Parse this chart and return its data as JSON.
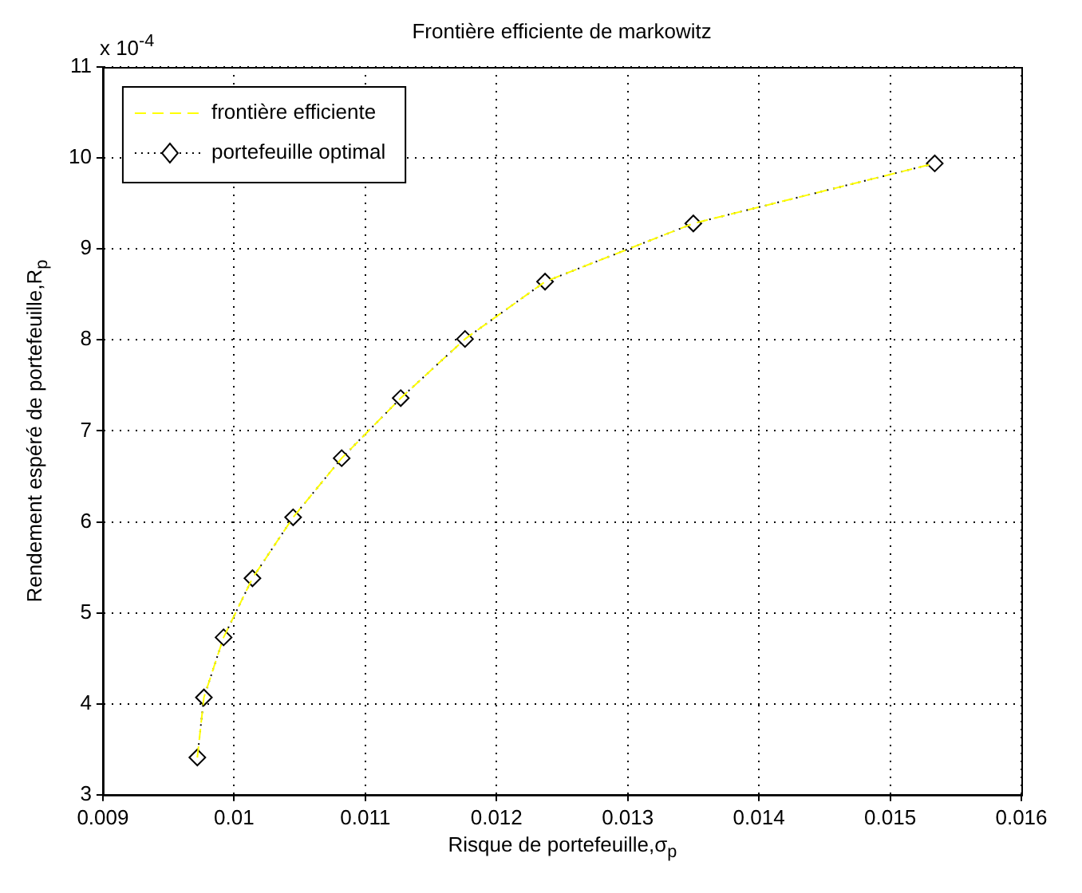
{
  "chart_data": {
    "type": "line",
    "title": "Frontière efficiente de markowitz",
    "xlabel": "Risque de portefeuille,σ$_{p}$",
    "ylabel": "Rendement espéré de portefeuille,R$_{p}$",
    "annotations": [
      "x 10$^{-4}$"
    ],
    "x": [
      0.00972,
      0.00977,
      0.00992,
      0.01014,
      0.01045,
      0.01082,
      0.01127,
      0.01176,
      0.01237,
      0.0135,
      0.01534
    ],
    "series": [
      {
        "name": "frontière efficiente",
        "color": "#ffff00",
        "line_style": "dashed",
        "marker": "none",
        "values": [
          3.41,
          4.07,
          4.73,
          5.38,
          6.05,
          6.7,
          7.36,
          8.01,
          8.64,
          9.28,
          9.94
        ]
      },
      {
        "name": "portefeuille optimal",
        "color": "#000000",
        "line_style": "dotted",
        "marker": "diamond",
        "values": [
          3.41,
          4.07,
          4.73,
          5.38,
          6.05,
          6.7,
          7.36,
          8.01,
          8.64,
          9.28,
          9.94
        ]
      }
    ],
    "xlim": [
      0.009,
      0.016
    ],
    "xticks": [
      0.009,
      0.01,
      0.011,
      0.012,
      0.013,
      0.014,
      0.015,
      0.016
    ],
    "ylim": [
      3,
      11
    ],
    "yticks": [
      3,
      4,
      5,
      6,
      7,
      8,
      9,
      10,
      11
    ],
    "grid": true,
    "legend": "top left"
  }
}
